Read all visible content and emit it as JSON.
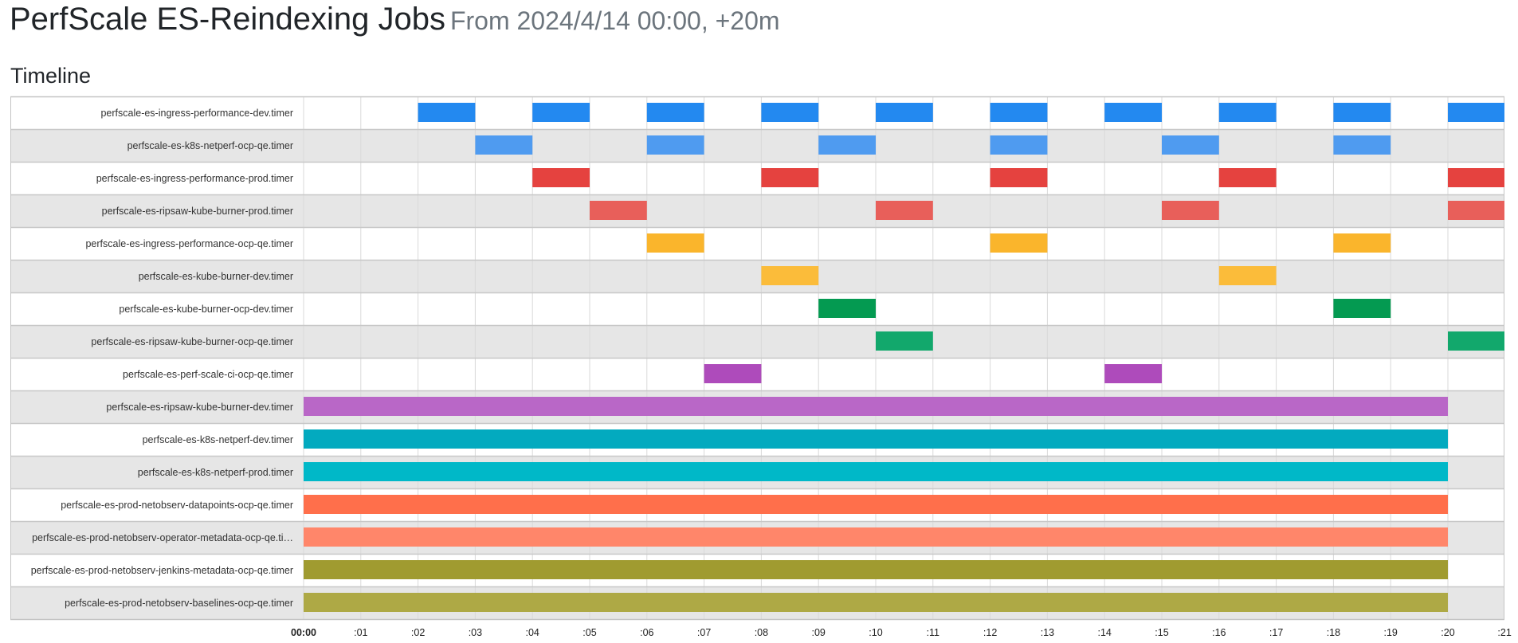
{
  "header": {
    "title": "PerfScale ES-Reindexing Jobs",
    "subtitle": "From 2024/4/14 00:00, +20m"
  },
  "section": {
    "heading": "Timeline"
  },
  "chart_data": {
    "type": "timeline",
    "x_unit": "minutes after 00:00",
    "xlim": [
      0,
      21
    ],
    "tick_labels": [
      "00:00",
      ":01",
      ":02",
      ":03",
      ":04",
      ":05",
      ":06",
      ":07",
      ":08",
      ":09",
      ":10",
      ":11",
      ":12",
      ":13",
      ":14",
      ":15",
      ":16",
      ":17",
      ":18",
      ":19",
      ":20",
      ":21"
    ],
    "rows": [
      {
        "label": "perfscale-es-ingress-performance-dev.timer",
        "color": "#2389f0",
        "bars": [
          [
            2,
            3
          ],
          [
            4,
            5
          ],
          [
            6,
            7
          ],
          [
            8,
            9
          ],
          [
            10,
            11
          ],
          [
            12,
            13
          ],
          [
            14,
            15
          ],
          [
            16,
            17
          ],
          [
            18,
            19
          ],
          [
            20,
            21
          ]
        ]
      },
      {
        "label": "perfscale-es-k8s-netperf-ocp-qe.timer",
        "color": "#4f9bf0",
        "bars": [
          [
            3,
            4
          ],
          [
            6,
            7
          ],
          [
            9,
            10
          ],
          [
            12,
            13
          ],
          [
            15,
            16
          ],
          [
            18,
            19
          ]
        ]
      },
      {
        "label": "perfscale-es-ingress-performance-prod.timer",
        "color": "#e5423f",
        "bars": [
          [
            4,
            5
          ],
          [
            8,
            9
          ],
          [
            12,
            13
          ],
          [
            16,
            17
          ],
          [
            20,
            21
          ]
        ]
      },
      {
        "label": "perfscale-es-ripsaw-kube-burner-prod.timer",
        "color": "#e85f5a",
        "bars": [
          [
            5,
            6
          ],
          [
            10,
            11
          ],
          [
            15,
            16
          ],
          [
            20,
            21
          ]
        ]
      },
      {
        "label": "perfscale-es-ingress-performance-ocp-qe.timer",
        "color": "#fab52c",
        "bars": [
          [
            6,
            7
          ],
          [
            12,
            13
          ],
          [
            18,
            19
          ]
        ]
      },
      {
        "label": "perfscale-es-kube-burner-dev.timer",
        "color": "#fbbc3a",
        "bars": [
          [
            8,
            9
          ],
          [
            16,
            17
          ]
        ]
      },
      {
        "label": "perfscale-es-kube-burner-ocp-dev.timer",
        "color": "#049a51",
        "bars": [
          [
            9,
            10
          ],
          [
            18,
            19
          ]
        ]
      },
      {
        "label": "perfscale-es-ripsaw-kube-burner-ocp-qe.timer",
        "color": "#12a86c",
        "bars": [
          [
            10,
            11
          ],
          [
            20,
            21
          ]
        ]
      },
      {
        "label": "perfscale-es-perf-scale-ci-ocp-qe.timer",
        "color": "#ae4bbb",
        "bars": [
          [
            7,
            8
          ],
          [
            14,
            15
          ]
        ]
      },
      {
        "label": "perfscale-es-ripsaw-kube-burner-dev.timer",
        "color": "#b967c7",
        "bars": [
          [
            0,
            20
          ]
        ]
      },
      {
        "label": "perfscale-es-k8s-netperf-dev.timer",
        "color": "#03aabf",
        "bars": [
          [
            0,
            20
          ]
        ]
      },
      {
        "label": "perfscale-es-k8s-netperf-prod.timer",
        "color": "#00b8c8",
        "bars": [
          [
            0,
            20
          ]
        ]
      },
      {
        "label": "perfscale-es-prod-netobserv-datapoints-ocp-qe.timer",
        "color": "#ff6f4b",
        "bars": [
          [
            0,
            20
          ]
        ]
      },
      {
        "label": "perfscale-es-prod-netobserv-operator-metadata-ocp-qe.ti…",
        "color": "#ff866a",
        "bars": [
          [
            0,
            20
          ]
        ]
      },
      {
        "label": "perfscale-es-prod-netobserv-jenkins-metadata-ocp-qe.timer",
        "color": "#a09b30",
        "bars": [
          [
            0,
            20
          ]
        ]
      },
      {
        "label": "perfscale-es-prod-netobserv-baselines-ocp-qe.timer",
        "color": "#aea945",
        "bars": [
          [
            0,
            20
          ]
        ]
      }
    ]
  }
}
